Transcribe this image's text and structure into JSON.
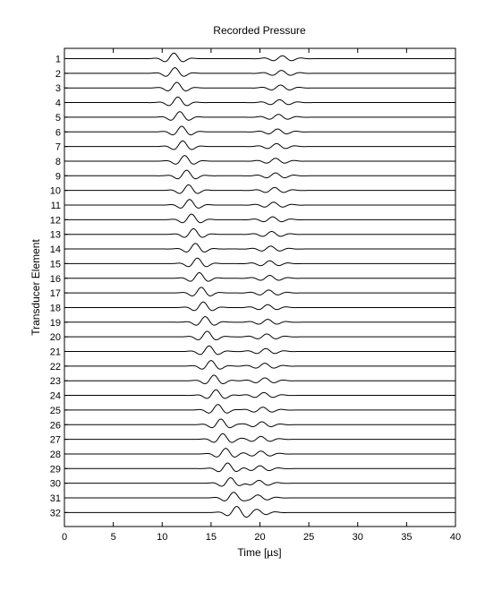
{
  "chart_data": {
    "type": "line",
    "title": "Recorded Pressure",
    "xlabel": "Time [µs]",
    "ylabel": "Transducer Element",
    "xlim": [
      0,
      40
    ],
    "x_ticks": [
      0,
      5,
      10,
      15,
      20,
      25,
      30,
      35,
      40
    ],
    "grid": false,
    "legend": "none",
    "line_color": "#000000",
    "element_labels": [
      "1",
      "2",
      "3",
      "4",
      "5",
      "6",
      "7",
      "8",
      "9",
      "10",
      "11",
      "12",
      "13",
      "14",
      "15",
      "16",
      "17",
      "18",
      "19",
      "20",
      "21",
      "22",
      "23",
      "24",
      "25",
      "26",
      "27",
      "28",
      "29",
      "30",
      "31",
      "32"
    ],
    "series": [
      {
        "name": "1",
        "pulse1_center_us": 11.2,
        "pulse2_center_us": 22.3
      },
      {
        "name": "2",
        "pulse1_center_us": 11.3,
        "pulse2_center_us": 22.2
      },
      {
        "name": "3",
        "pulse1_center_us": 11.5,
        "pulse2_center_us": 22.1
      },
      {
        "name": "4",
        "pulse1_center_us": 11.6,
        "pulse2_center_us": 22.0
      },
      {
        "name": "5",
        "pulse1_center_us": 11.8,
        "pulse2_center_us": 21.9
      },
      {
        "name": "6",
        "pulse1_center_us": 12.0,
        "pulse2_center_us": 21.8
      },
      {
        "name": "7",
        "pulse1_center_us": 12.1,
        "pulse2_center_us": 21.7
      },
      {
        "name": "8",
        "pulse1_center_us": 12.3,
        "pulse2_center_us": 21.6
      },
      {
        "name": "9",
        "pulse1_center_us": 12.5,
        "pulse2_center_us": 21.6
      },
      {
        "name": "10",
        "pulse1_center_us": 12.7,
        "pulse2_center_us": 21.5
      },
      {
        "name": "11",
        "pulse1_center_us": 12.8,
        "pulse2_center_us": 21.4
      },
      {
        "name": "12",
        "pulse1_center_us": 13.0,
        "pulse2_center_us": 21.3
      },
      {
        "name": "13",
        "pulse1_center_us": 13.2,
        "pulse2_center_us": 21.2
      },
      {
        "name": "14",
        "pulse1_center_us": 13.4,
        "pulse2_center_us": 21.1
      },
      {
        "name": "15",
        "pulse1_center_us": 13.6,
        "pulse2_center_us": 21.0
      },
      {
        "name": "16",
        "pulse1_center_us": 13.8,
        "pulse2_center_us": 21.0
      },
      {
        "name": "17",
        "pulse1_center_us": 14.0,
        "pulse2_center_us": 20.9
      },
      {
        "name": "18",
        "pulse1_center_us": 14.2,
        "pulse2_center_us": 20.8
      },
      {
        "name": "19",
        "pulse1_center_us": 14.4,
        "pulse2_center_us": 20.8
      },
      {
        "name": "20",
        "pulse1_center_us": 14.6,
        "pulse2_center_us": 20.7
      },
      {
        "name": "21",
        "pulse1_center_us": 14.8,
        "pulse2_center_us": 20.6
      },
      {
        "name": "22",
        "pulse1_center_us": 15.0,
        "pulse2_center_us": 20.5
      },
      {
        "name": "23",
        "pulse1_center_us": 15.3,
        "pulse2_center_us": 20.5
      },
      {
        "name": "24",
        "pulse1_center_us": 15.5,
        "pulse2_center_us": 20.4
      },
      {
        "name": "25",
        "pulse1_center_us": 15.7,
        "pulse2_center_us": 20.3
      },
      {
        "name": "26",
        "pulse1_center_us": 16.0,
        "pulse2_center_us": 20.2
      },
      {
        "name": "27",
        "pulse1_center_us": 16.2,
        "pulse2_center_us": 20.1
      },
      {
        "name": "28",
        "pulse1_center_us": 16.5,
        "pulse2_center_us": 20.1
      },
      {
        "name": "29",
        "pulse1_center_us": 16.7,
        "pulse2_center_us": 20.0
      },
      {
        "name": "30",
        "pulse1_center_us": 17.0,
        "pulse2_center_us": 19.9
      },
      {
        "name": "31",
        "pulse1_center_us": 17.3,
        "pulse2_center_us": 19.8
      },
      {
        "name": "32",
        "pulse1_center_us": 17.6,
        "pulse2_center_us": 19.7
      }
    ]
  }
}
